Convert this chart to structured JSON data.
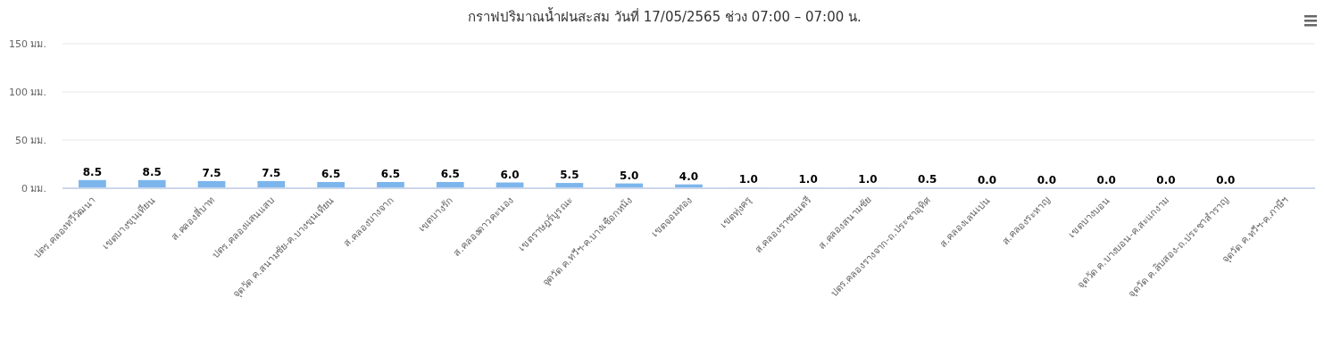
{
  "chart_data": {
    "type": "bar",
    "title": "กราฟปริมาณน้ำฝนสะสม วันที่ 17/05/2565 ช่วง 07:00 – 07:00 น.",
    "categories": [
      "ปตร.คลองทวีวัฒนา",
      "เขตบางขุนเทียน",
      "ส.คลองสี่บาท",
      "ปตร.คลองแสนแสบ",
      "จุดวัด ค.สนามชัย-ค.บางขุนเทียน",
      "ส.คลองบางจาก",
      "เขตบางรัก",
      "ส.คลองดาวคะนอง",
      "เขตราษฎร์บูรณะ",
      "จุดวัด ค.ทวีฯ-ค.บางเชือกหนัง",
      "เขตจอมทอง",
      "เขตทุ่งครุ",
      "ส.คลองราชมนตรี",
      "ส.คลองสนามชัย",
      "ปตร.คลองรางจาก-ถ.ประชาอุทิศ",
      "ส.คลองเลนเปน",
      "ส.คลองระหาญ",
      "เขตบางบอน",
      "จุดวัด ค.บางบอน-ค.สะแกงาม",
      "จุดวัด ค.สิบสอง-ถ.ประชาสำราญ",
      "จุดวัด ค.ทวีฯ-ค.ภาษีฯ"
    ],
    "values": [
      8.5,
      8.5,
      7.5,
      7.5,
      6.5,
      6.5,
      6.5,
      6.0,
      5.5,
      5.0,
      4.0,
      1.0,
      1.0,
      1.0,
      0.5,
      0,
      0,
      0,
      0,
      0,
      null
    ],
    "value_labels": [
      "8.5",
      "8.5",
      "7.5",
      "7.5",
      "6.5",
      "6.5",
      "6.5",
      "6.0",
      "5.5",
      "5.0",
      "4.0",
      "1.0",
      "1.0",
      "1.0",
      "0.5",
      "0.0",
      "0.0",
      "0.0",
      "0.0",
      "0.0",
      null
    ],
    "color": "#7cb5ec",
    "ylim": [
      0,
      150
    ],
    "yticks": [
      {
        "value": 0,
        "label": "0 มม."
      },
      {
        "value": 50,
        "label": "50 มม."
      },
      {
        "value": 100,
        "label": "100 มม."
      },
      {
        "value": 150,
        "label": "150 มม."
      }
    ],
    "grid": "y"
  }
}
